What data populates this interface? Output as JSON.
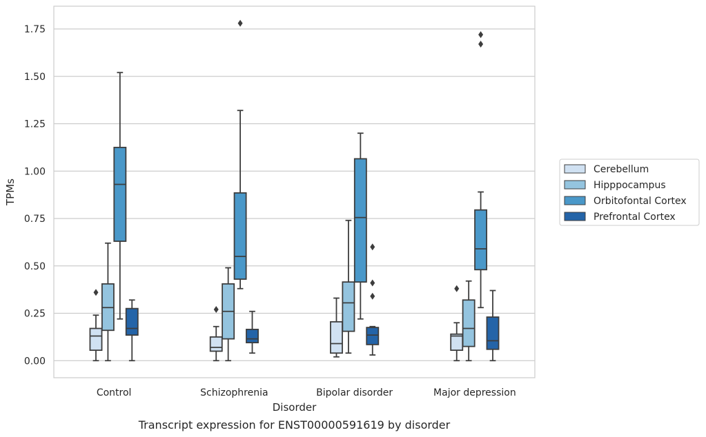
{
  "chart_data": {
    "type": "boxplot",
    "xlabel": "Disorder",
    "ylabel": "TPMs",
    "caption": "Transcript expression for ENST00000591619 by disorder",
    "ylim": [
      -0.09,
      1.87
    ],
    "yticks": [
      "0.00",
      "0.25",
      "0.50",
      "0.75",
      "1.00",
      "1.25",
      "1.50",
      "1.75"
    ],
    "ytick_values": [
      0,
      0.25,
      0.5,
      0.75,
      1.0,
      1.25,
      1.5,
      1.75
    ],
    "grid": true,
    "legend_position": "right",
    "categories": [
      "Control",
      "Schizophrenia",
      "Bipolar disorder",
      "Major depression"
    ],
    "series": [
      {
        "name": "Cerebellum",
        "color": "#d0e1f2",
        "boxes": [
          {
            "whisker_low": 0.0,
            "q1": 0.055,
            "median": 0.13,
            "q3": 0.17,
            "whisker_high": 0.24,
            "outliers": [
              0.36
            ]
          },
          {
            "whisker_low": 0.0,
            "q1": 0.05,
            "median": 0.07,
            "q3": 0.125,
            "whisker_high": 0.18,
            "outliers": [
              0.27
            ]
          },
          {
            "whisker_low": 0.02,
            "q1": 0.04,
            "median": 0.09,
            "q3": 0.205,
            "whisker_high": 0.33,
            "outliers": []
          },
          {
            "whisker_low": 0.0,
            "q1": 0.055,
            "median": 0.13,
            "q3": 0.14,
            "whisker_high": 0.2,
            "outliers": [
              0.38
            ]
          }
        ]
      },
      {
        "name": "Hipppocampus",
        "color": "#94c4df",
        "boxes": [
          {
            "whisker_low": 0.0,
            "q1": 0.16,
            "median": 0.28,
            "q3": 0.405,
            "whisker_high": 0.62,
            "outliers": []
          },
          {
            "whisker_low": 0.0,
            "q1": 0.115,
            "median": 0.26,
            "q3": 0.405,
            "whisker_high": 0.49,
            "outliers": []
          },
          {
            "whisker_low": 0.04,
            "q1": 0.155,
            "median": 0.305,
            "q3": 0.415,
            "whisker_high": 0.74,
            "outliers": []
          },
          {
            "whisker_low": 0.0,
            "q1": 0.075,
            "median": 0.17,
            "q3": 0.32,
            "whisker_high": 0.42,
            "outliers": []
          }
        ]
      },
      {
        "name": "Orbitofontal Cortex",
        "color": "#4a98c9",
        "boxes": [
          {
            "whisker_low": 0.22,
            "q1": 0.63,
            "median": 0.93,
            "q3": 1.125,
            "whisker_high": 1.52,
            "outliers": []
          },
          {
            "whisker_low": 0.38,
            "q1": 0.43,
            "median": 0.55,
            "q3": 0.885,
            "whisker_high": 1.32,
            "outliers": [
              1.78
            ]
          },
          {
            "whisker_low": 0.22,
            "q1": 0.415,
            "median": 0.755,
            "q3": 1.065,
            "whisker_high": 1.2,
            "outliers": []
          },
          {
            "whisker_low": 0.28,
            "q1": 0.48,
            "median": 0.59,
            "q3": 0.795,
            "whisker_high": 0.89,
            "outliers": [
              1.67,
              1.72
            ]
          }
        ]
      },
      {
        "name": "Prefrontal Cortex",
        "color": "#2464a8",
        "boxes": [
          {
            "whisker_low": 0.0,
            "q1": 0.135,
            "median": 0.17,
            "q3": 0.275,
            "whisker_high": 0.32,
            "outliers": []
          },
          {
            "whisker_low": 0.04,
            "q1": 0.095,
            "median": 0.115,
            "q3": 0.165,
            "whisker_high": 0.26,
            "outliers": []
          },
          {
            "whisker_low": 0.03,
            "q1": 0.085,
            "median": 0.135,
            "q3": 0.175,
            "whisker_high": 0.18,
            "outliers": [
              0.34,
              0.41,
              0.6
            ]
          },
          {
            "whisker_low": 0.0,
            "q1": 0.06,
            "median": 0.105,
            "q3": 0.23,
            "whisker_high": 0.37,
            "outliers": []
          }
        ]
      }
    ]
  }
}
